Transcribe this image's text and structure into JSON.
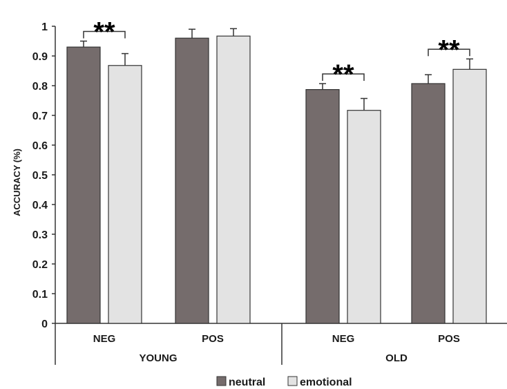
{
  "chart_data": {
    "type": "bar",
    "ylabel": "ACCURACY (%)",
    "ylim": [
      0,
      1
    ],
    "yticks": [
      "0",
      "0.1",
      "0.2",
      "0.3",
      "0.4",
      "0.5",
      "0.6",
      "0.7",
      "0.8",
      "0.9",
      "1"
    ],
    "groups": [
      "YOUNG",
      "OLD"
    ],
    "categories": [
      {
        "group": "YOUNG",
        "label": "NEG"
      },
      {
        "group": "YOUNG",
        "label": "POS"
      },
      {
        "group": "OLD",
        "label": "NEG"
      },
      {
        "group": "OLD",
        "label": "POS"
      }
    ],
    "series": [
      {
        "name": "neutral",
        "color": "#756c6c",
        "values": [
          0.93,
          0.96,
          0.787,
          0.807
        ],
        "errors": [
          0.02,
          0.03,
          0.02,
          0.03
        ]
      },
      {
        "name": "emotional",
        "color": "#e3e3e3",
        "values": [
          0.868,
          0.967,
          0.717,
          0.855
        ],
        "errors": [
          0.04,
          0.025,
          0.04,
          0.035
        ]
      }
    ],
    "significance": [
      {
        "category_index": 0,
        "label": "**"
      },
      {
        "category_index": 2,
        "label": "**"
      },
      {
        "category_index": 3,
        "label": "**"
      }
    ],
    "legend_position": "bottom-center",
    "grid": false
  }
}
